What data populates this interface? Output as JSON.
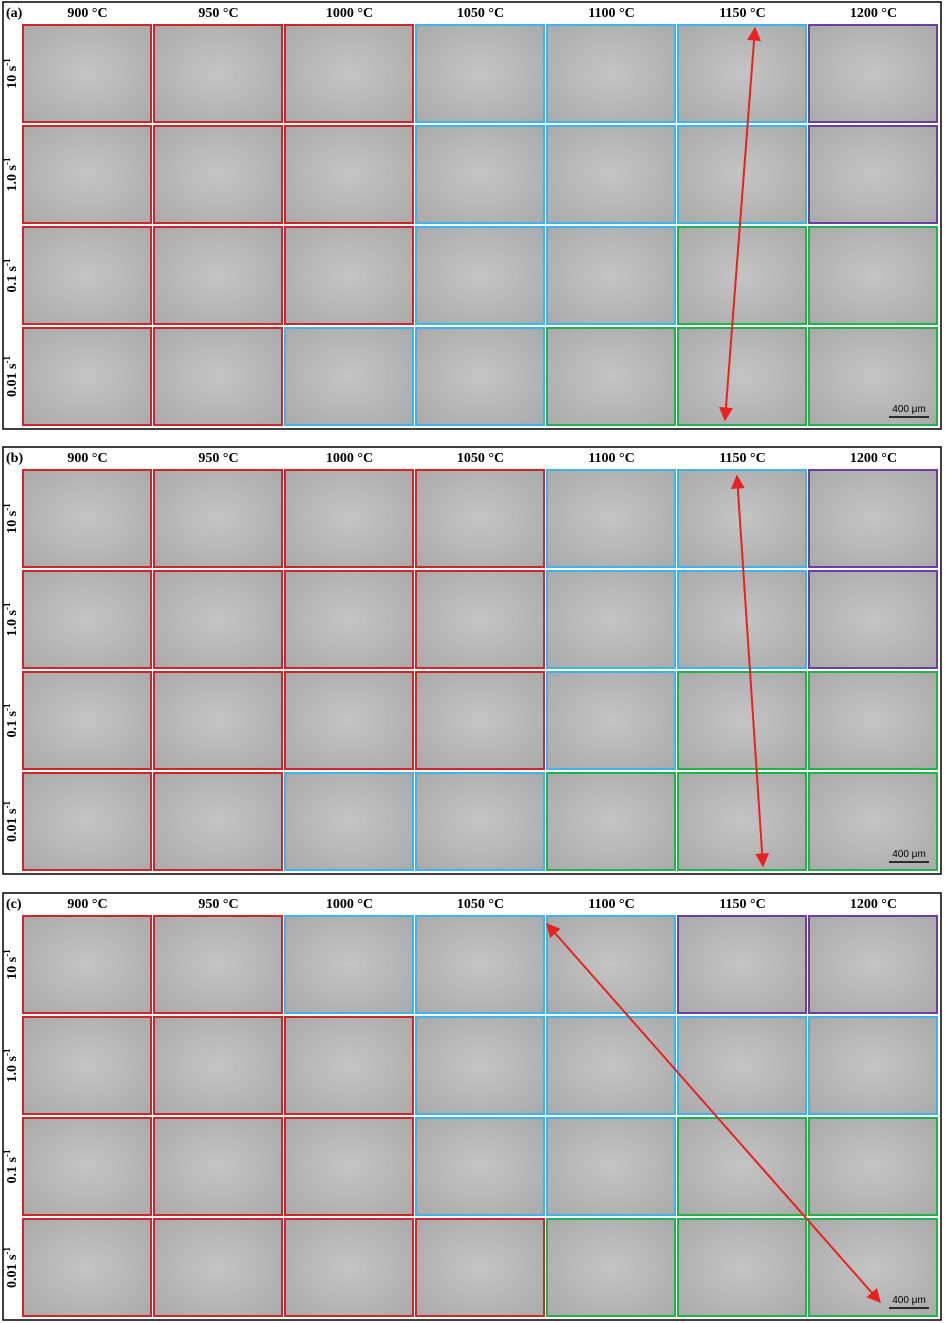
{
  "colors": {
    "r": "#d0262a",
    "b": "#3db4ea",
    "g": "#22b24c",
    "p": "#6b3fa0"
  },
  "panels": [
    {
      "label": "(a)",
      "columns": [
        "900 °C",
        "950 °C",
        "1000 °C",
        "1050 °C",
        "1100 °C",
        "1150 °C",
        "1200 °C"
      ],
      "rows": [
        {
          "text": "10 s",
          "sup": "-1"
        },
        {
          "text": "1.0 s",
          "sup": "-1"
        },
        {
          "text": "0.1 s",
          "sup": "-1"
        },
        {
          "text": "0.01 s",
          "sup": "-1"
        }
      ],
      "borders": [
        "rrrbbbp",
        "rrrbbbp",
        "rrrbbgg",
        "rrbbggg"
      ],
      "scale_bar": "400 μm"
    },
    {
      "label": "(b)",
      "columns": [
        "900 °C",
        "950 °C",
        "1000 °C",
        "1050 °C",
        "1100 °C",
        "1150 °C",
        "1200 °C"
      ],
      "rows": [
        {
          "text": "10 s",
          "sup": "-1"
        },
        {
          "text": "1.0 s",
          "sup": "-1"
        },
        {
          "text": "0.1 s",
          "sup": "-1"
        },
        {
          "text": "0.01 s",
          "sup": "-1"
        }
      ],
      "borders": [
        "rrrrbbp",
        "rrrrbbp",
        "rrrrbgg",
        "rrbbggg"
      ],
      "scale_bar": "400 μm"
    },
    {
      "label": "(c)",
      "columns": [
        "900 °C",
        "950 °C",
        "1000 °C",
        "1050 °C",
        "1100 °C",
        "1150 °C",
        "1200 °C"
      ],
      "rows": [
        {
          "text": "10 s",
          "sup": "-1"
        },
        {
          "text": "1.0 s",
          "sup": "-1"
        },
        {
          "text": "0.1 s",
          "sup": "-1"
        },
        {
          "text": "0.01 s",
          "sup": "-1"
        }
      ],
      "borders": [
        "rrbbbpp",
        "rrrbbbb",
        "rrrbbgg",
        "rrrrggg"
      ],
      "scale_bar": "400 μm"
    }
  ]
}
